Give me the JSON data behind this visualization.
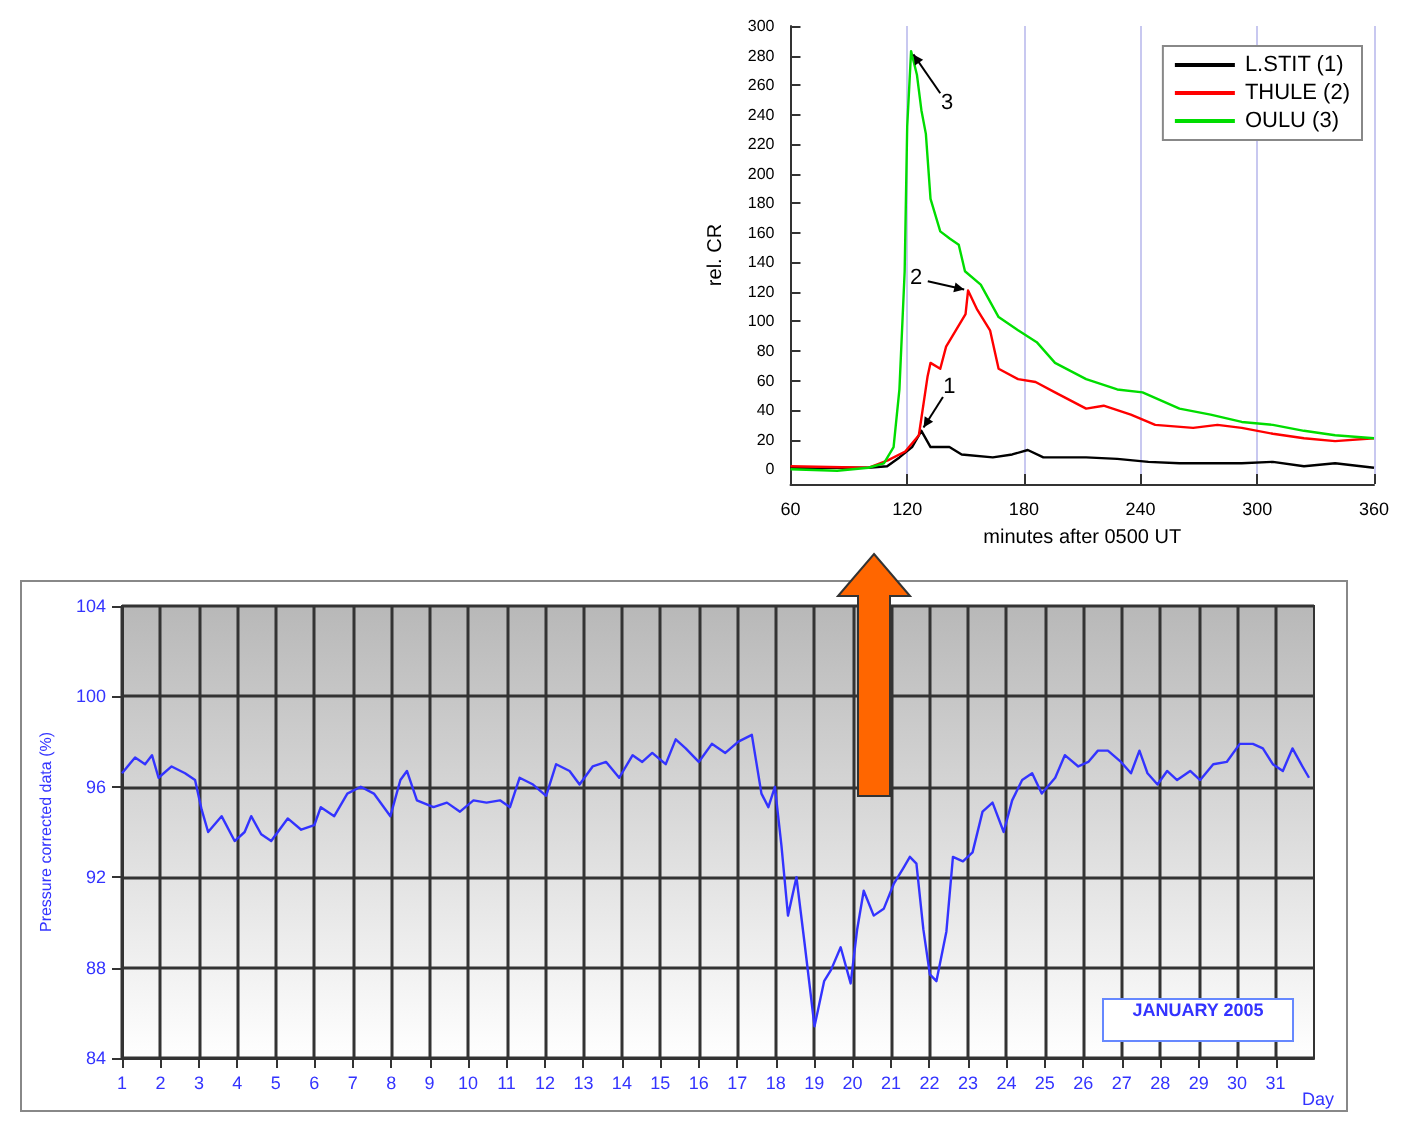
{
  "chart_data": [
    {
      "type": "line",
      "xlabel": "minutes after 0500 UT",
      "ylabel": "rel. CR",
      "xlim": [
        60,
        360
      ],
      "xticks": [
        60,
        120,
        180,
        240,
        300,
        360
      ],
      "ylim": [
        -10,
        300
      ],
      "yticks": [
        0,
        20,
        40,
        60,
        80,
        100,
        120,
        140,
        160,
        180,
        200,
        220,
        240,
        260,
        280,
        300
      ],
      "grid": "x",
      "legend": "top right",
      "marker": "none",
      "series": [
        {
          "name": "L.STIT (1)",
          "color": "#000000",
          "x": [
            60,
            100,
            109.7,
            116,
            122.5,
            127.3,
            132,
            141.7,
            148,
            164,
            174,
            182,
            190,
            212,
            228,
            244,
            260,
            292,
            308,
            324,
            340,
            360
          ],
          "values": [
            1,
            1,
            2,
            8,
            15,
            26,
            15,
            15,
            10,
            8,
            10,
            13,
            8,
            8,
            7,
            5,
            4,
            4,
            5,
            2,
            4,
            1
          ]
        },
        {
          "name": "THULE (2)",
          "color": "#ff0000",
          "x": [
            60,
            100,
            110,
            119,
            126,
            130.5,
            132,
            137,
            140,
            145,
            150,
            151.3,
            156,
            162.6,
            167,
            177,
            186,
            196,
            212,
            221,
            235,
            247.5,
            267,
            279.5,
            292,
            308,
            324,
            340,
            360
          ],
          "values": [
            2,
            1,
            6,
            12,
            23,
            63,
            72,
            68,
            83,
            94,
            105,
            121,
            108,
            94,
            68,
            61,
            59,
            52,
            41,
            43,
            37,
            30,
            28,
            30,
            28,
            24,
            21,
            19,
            21
          ]
        },
        {
          "name": "OULU (3)",
          "color": "#00dd00",
          "x": [
            60,
            84,
            100,
            108,
            113,
            116,
            118.7,
            120,
            122,
            125,
            127.3,
            129.6,
            132,
            137,
            142,
            146.5,
            149.7,
            157.8,
            167,
            177,
            186.6,
            196,
            212,
            228,
            241,
            260,
            276,
            292,
            308,
            324,
            340,
            360
          ],
          "values": [
            0,
            -1,
            1,
            4,
            15,
            54,
            134,
            232,
            283,
            267,
            243,
            227,
            183,
            161,
            156,
            152,
            134,
            125,
            103,
            94,
            86,
            72,
            61,
            54,
            52,
            41,
            37,
            32,
            30,
            26,
            23,
            21
          ]
        }
      ],
      "annotations": [
        {
          "text": "1",
          "x": 127.3,
          "y": 26
        },
        {
          "text": "2",
          "x": 151.3,
          "y": 121
        },
        {
          "text": "3",
          "x": 122,
          "y": 283
        }
      ]
    },
    {
      "type": "line",
      "xlabel": "Day",
      "ylabel": "Pressure corrected data (%)",
      "xlim": [
        1,
        32
      ],
      "xticks": [
        1,
        2,
        3,
        4,
        5,
        6,
        7,
        8,
        9,
        10,
        11,
        12,
        13,
        14,
        15,
        16,
        17,
        18,
        19,
        20,
        21,
        22,
        23,
        24,
        25,
        26,
        27,
        28,
        29,
        30,
        31
      ],
      "ylim": [
        84,
        104
      ],
      "yticks": [
        84,
        88,
        92,
        96,
        100,
        104
      ],
      "grid": true,
      "legend": false,
      "marker": "none",
      "series": [
        {
          "color": "#3333ff",
          "x": [
            1.0,
            1.34,
            1.6,
            1.78,
            1.95,
            2.29,
            2.64,
            2.9,
            3.07,
            3.24,
            3.59,
            3.93,
            4.19,
            4.36,
            4.62,
            4.88,
            5.31,
            5.66,
            6.0,
            6.17,
            6.52,
            6.86,
            7.21,
            7.55,
            7.98,
            8.24,
            8.41,
            8.67,
            9.1,
            9.45,
            9.79,
            10.14,
            10.48,
            10.83,
            11.09,
            11.34,
            11.69,
            12.03,
            12.29,
            12.64,
            12.9,
            13.24,
            13.59,
            13.93,
            14.28,
            14.53,
            14.79,
            15.14,
            15.4,
            15.66,
            16.0,
            16.34,
            16.69,
            17.03,
            17.38,
            17.63,
            17.81,
            17.98,
            18.15,
            18.32,
            18.54,
            18.75,
            19.01,
            19.26,
            19.44,
            19.69,
            19.95,
            20.12,
            20.29,
            20.55,
            20.81,
            21.07,
            21.32,
            21.49,
            21.66,
            21.84,
            22.01,
            22.18,
            22.44,
            22.61,
            22.87,
            23.12,
            23.38,
            23.64,
            23.93,
            24.15,
            24.41,
            24.67,
            24.92,
            25.27,
            25.52,
            25.87,
            26.13,
            26.38,
            26.64,
            26.98,
            27.24,
            27.46,
            27.67,
            27.93,
            28.18,
            28.44,
            28.78,
            29.04,
            29.38,
            29.73,
            30.07,
            30.41,
            30.67,
            30.93,
            31.19,
            31.44,
            31.7,
            31.87
          ],
          "values": [
            96.6,
            97.3,
            97.0,
            97.4,
            96.4,
            96.9,
            96.6,
            96.3,
            95.0,
            94.0,
            94.7,
            93.6,
            94.0,
            94.7,
            93.9,
            93.6,
            94.6,
            94.1,
            94.3,
            95.1,
            94.7,
            95.7,
            96.0,
            95.7,
            94.7,
            96.3,
            96.7,
            95.4,
            95.1,
            95.3,
            94.9,
            95.4,
            95.3,
            95.4,
            95.1,
            96.4,
            96.1,
            95.6,
            97.0,
            96.7,
            96.1,
            96.9,
            97.1,
            96.4,
            97.4,
            97.1,
            97.5,
            97.0,
            98.1,
            97.7,
            97.1,
            97.9,
            97.5,
            98.0,
            98.3,
            95.7,
            95.1,
            96.0,
            93.4,
            90.3,
            92.0,
            89.1,
            85.4,
            87.4,
            87.9,
            88.9,
            87.3,
            89.7,
            91.4,
            90.3,
            90.6,
            91.7,
            92.4,
            92.9,
            92.6,
            89.7,
            87.7,
            87.4,
            89.6,
            92.9,
            92.7,
            93.1,
            94.9,
            95.3,
            94.0,
            95.4,
            96.3,
            96.6,
            95.7,
            96.4,
            97.4,
            96.9,
            97.1,
            97.6,
            97.6,
            97.1,
            96.6,
            97.6,
            96.6,
            96.1,
            96.7,
            96.3,
            96.7,
            96.3,
            97.0,
            97.1,
            97.9,
            97.9,
            97.7,
            97.0,
            96.7,
            97.7,
            96.9,
            96.4
          ]
        }
      ],
      "annotations": [
        "JANUARY 2005"
      ]
    }
  ]
}
